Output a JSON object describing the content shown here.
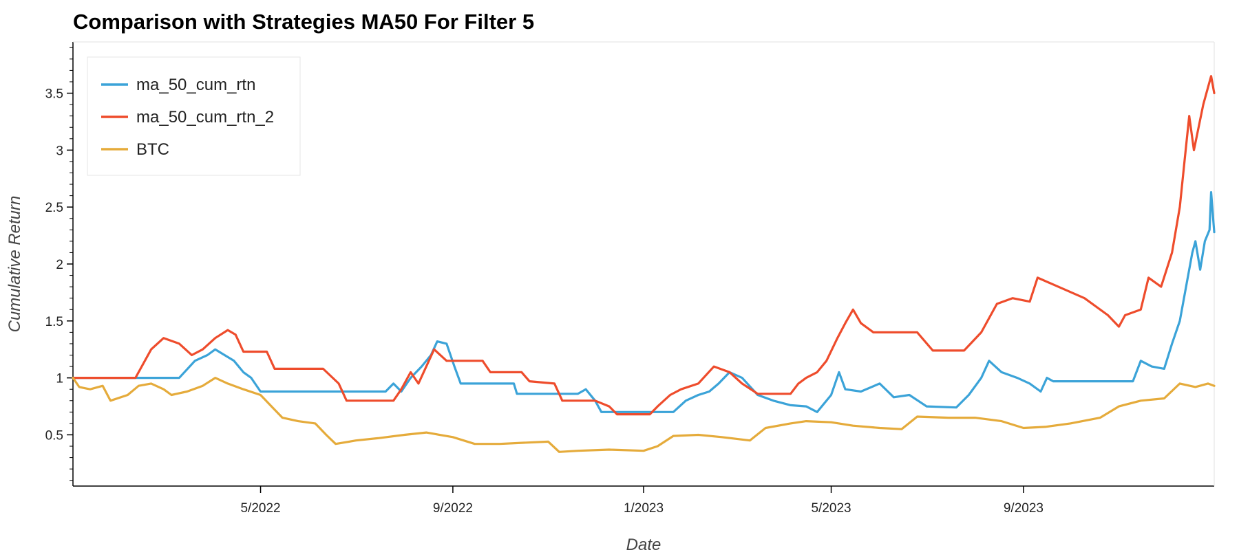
{
  "chart_data": {
    "type": "line",
    "title": "Comparison with Strategies MA50 For Filter 5",
    "xlabel": "Date",
    "ylabel": "Cumulative Return",
    "xlim": [
      "2022-01-01",
      "2024-01-01"
    ],
    "ylim": [
      0.05,
      3.95
    ],
    "x_ticks": [
      {
        "date": "2022-05-01",
        "label": "5/2022"
      },
      {
        "date": "2022-09-01",
        "label": "9/2022"
      },
      {
        "date": "2023-01-01",
        "label": "1/2023"
      },
      {
        "date": "2023-05-01",
        "label": "5/2023"
      },
      {
        "date": "2023-09-01",
        "label": "9/2023"
      }
    ],
    "y_ticks": [
      {
        "value": 0.5,
        "label": "0.5"
      },
      {
        "value": 1,
        "label": "1"
      },
      {
        "value": 1.5,
        "label": "1.5"
      },
      {
        "value": 2,
        "label": "2"
      },
      {
        "value": 2.5,
        "label": "2.5"
      },
      {
        "value": 3,
        "label": "3"
      },
      {
        "value": 3.5,
        "label": "3.5"
      }
    ],
    "grid": false,
    "legend_position": "top-left",
    "series": [
      {
        "name": "ma_50_cum_rtn",
        "color": "#3ba3d8",
        "points": [
          [
            "2022-01-01",
            1.0
          ],
          [
            "2022-02-10",
            1.0
          ],
          [
            "2022-03-10",
            1.0
          ],
          [
            "2022-03-20",
            1.15
          ],
          [
            "2022-03-28",
            1.2
          ],
          [
            "2022-04-02",
            1.25
          ],
          [
            "2022-04-08",
            1.2
          ],
          [
            "2022-04-14",
            1.15
          ],
          [
            "2022-04-20",
            1.05
          ],
          [
            "2022-04-25",
            1.0
          ],
          [
            "2022-05-01",
            0.88
          ],
          [
            "2022-07-01",
            0.88
          ],
          [
            "2022-07-20",
            0.88
          ],
          [
            "2022-07-25",
            0.95
          ],
          [
            "2022-07-30",
            0.88
          ],
          [
            "2022-08-05",
            1.0
          ],
          [
            "2022-08-12",
            1.1
          ],
          [
            "2022-08-18",
            1.2
          ],
          [
            "2022-08-22",
            1.32
          ],
          [
            "2022-08-28",
            1.3
          ],
          [
            "2022-09-02",
            1.1
          ],
          [
            "2022-09-06",
            0.95
          ],
          [
            "2022-10-10",
            0.95
          ],
          [
            "2022-10-12",
            0.86
          ],
          [
            "2022-11-20",
            0.86
          ],
          [
            "2022-11-25",
            0.9
          ],
          [
            "2022-12-01",
            0.8
          ],
          [
            "2022-12-05",
            0.7
          ],
          [
            "2023-01-20",
            0.7
          ],
          [
            "2023-01-28",
            0.8
          ],
          [
            "2023-02-05",
            0.85
          ],
          [
            "2023-02-12",
            0.88
          ],
          [
            "2023-02-18",
            0.95
          ],
          [
            "2023-02-25",
            1.05
          ],
          [
            "2023-03-05",
            1.0
          ],
          [
            "2023-03-15",
            0.85
          ],
          [
            "2023-03-25",
            0.8
          ],
          [
            "2023-04-05",
            0.76
          ],
          [
            "2023-04-15",
            0.75
          ],
          [
            "2023-04-22",
            0.7
          ],
          [
            "2023-05-01",
            0.85
          ],
          [
            "2023-05-06",
            1.05
          ],
          [
            "2023-05-10",
            0.9
          ],
          [
            "2023-05-20",
            0.88
          ],
          [
            "2023-06-01",
            0.95
          ],
          [
            "2023-06-10",
            0.83
          ],
          [
            "2023-06-20",
            0.85
          ],
          [
            "2023-07-01",
            0.75
          ],
          [
            "2023-07-20",
            0.74
          ],
          [
            "2023-07-28",
            0.85
          ],
          [
            "2023-08-05",
            1.0
          ],
          [
            "2023-08-10",
            1.15
          ],
          [
            "2023-08-18",
            1.05
          ],
          [
            "2023-08-28",
            1.0
          ],
          [
            "2023-09-05",
            0.95
          ],
          [
            "2023-09-12",
            0.88
          ],
          [
            "2023-09-16",
            1.0
          ],
          [
            "2023-09-20",
            0.97
          ],
          [
            "2023-11-10",
            0.97
          ],
          [
            "2023-11-15",
            1.15
          ],
          [
            "2023-11-22",
            1.1
          ],
          [
            "2023-11-30",
            1.08
          ],
          [
            "2023-12-05",
            1.3
          ],
          [
            "2023-12-10",
            1.5
          ],
          [
            "2023-12-14",
            1.8
          ],
          [
            "2023-12-18",
            2.1
          ],
          [
            "2023-12-20",
            2.2
          ],
          [
            "2023-12-23",
            1.95
          ],
          [
            "2023-12-26",
            2.2
          ],
          [
            "2023-12-29",
            2.3
          ],
          [
            "2023-12-30",
            2.63
          ],
          [
            "2024-01-01",
            2.28
          ]
        ]
      },
      {
        "name": "ma_50_cum_rtn_2",
        "color": "#ee4c2c",
        "points": [
          [
            "2022-01-01",
            1.0
          ],
          [
            "2022-02-10",
            1.0
          ],
          [
            "2022-02-20",
            1.25
          ],
          [
            "2022-02-28",
            1.35
          ],
          [
            "2022-03-10",
            1.3
          ],
          [
            "2022-03-18",
            1.2
          ],
          [
            "2022-03-25",
            1.25
          ],
          [
            "2022-04-02",
            1.35
          ],
          [
            "2022-04-10",
            1.42
          ],
          [
            "2022-04-15",
            1.38
          ],
          [
            "2022-04-20",
            1.23
          ],
          [
            "2022-05-05",
            1.23
          ],
          [
            "2022-05-10",
            1.08
          ],
          [
            "2022-06-10",
            1.08
          ],
          [
            "2022-06-20",
            0.95
          ],
          [
            "2022-06-25",
            0.8
          ],
          [
            "2022-07-25",
            0.8
          ],
          [
            "2022-07-30",
            0.9
          ],
          [
            "2022-08-05",
            1.05
          ],
          [
            "2022-08-10",
            0.95
          ],
          [
            "2022-08-15",
            1.1
          ],
          [
            "2022-08-20",
            1.25
          ],
          [
            "2022-08-28",
            1.15
          ],
          [
            "2022-09-20",
            1.15
          ],
          [
            "2022-09-25",
            1.05
          ],
          [
            "2022-10-15",
            1.05
          ],
          [
            "2022-10-20",
            0.97
          ],
          [
            "2022-11-05",
            0.95
          ],
          [
            "2022-11-10",
            0.8
          ],
          [
            "2022-12-01",
            0.8
          ],
          [
            "2022-12-10",
            0.75
          ],
          [
            "2022-12-15",
            0.68
          ],
          [
            "2023-01-05",
            0.68
          ],
          [
            "2023-01-10",
            0.75
          ],
          [
            "2023-01-18",
            0.85
          ],
          [
            "2023-01-25",
            0.9
          ],
          [
            "2023-02-05",
            0.95
          ],
          [
            "2023-02-15",
            1.1
          ],
          [
            "2023-02-25",
            1.05
          ],
          [
            "2023-03-05",
            0.95
          ],
          [
            "2023-03-15",
            0.86
          ],
          [
            "2023-04-05",
            0.86
          ],
          [
            "2023-04-10",
            0.95
          ],
          [
            "2023-04-15",
            1.0
          ],
          [
            "2023-04-22",
            1.05
          ],
          [
            "2023-04-28",
            1.15
          ],
          [
            "2023-05-05",
            1.35
          ],
          [
            "2023-05-10",
            1.48
          ],
          [
            "2023-05-15",
            1.6
          ],
          [
            "2023-05-20",
            1.48
          ],
          [
            "2023-05-28",
            1.4
          ],
          [
            "2023-06-25",
            1.4
          ],
          [
            "2023-07-05",
            1.24
          ],
          [
            "2023-07-25",
            1.24
          ],
          [
            "2023-08-05",
            1.4
          ],
          [
            "2023-08-15",
            1.65
          ],
          [
            "2023-08-25",
            1.7
          ],
          [
            "2023-09-05",
            1.67
          ],
          [
            "2023-09-10",
            1.88
          ],
          [
            "2023-09-20",
            1.82
          ],
          [
            "2023-10-10",
            1.7
          ],
          [
            "2023-10-25",
            1.55
          ],
          [
            "2023-11-01",
            1.45
          ],
          [
            "2023-11-05",
            1.55
          ],
          [
            "2023-11-15",
            1.6
          ],
          [
            "2023-11-20",
            1.88
          ],
          [
            "2023-11-28",
            1.8
          ],
          [
            "2023-12-05",
            2.1
          ],
          [
            "2023-12-10",
            2.5
          ],
          [
            "2023-12-13",
            2.9
          ],
          [
            "2023-12-16",
            3.3
          ],
          [
            "2023-12-19",
            3.0
          ],
          [
            "2023-12-22",
            3.2
          ],
          [
            "2023-12-25",
            3.4
          ],
          [
            "2023-12-28",
            3.55
          ],
          [
            "2023-12-30",
            3.65
          ],
          [
            "2024-01-01",
            3.5
          ]
        ]
      },
      {
        "name": "BTC",
        "color": "#e5ab3b",
        "points": [
          [
            "2022-01-01",
            1.0
          ],
          [
            "2022-01-05",
            0.92
          ],
          [
            "2022-01-12",
            0.9
          ],
          [
            "2022-01-20",
            0.93
          ],
          [
            "2022-01-25",
            0.8
          ],
          [
            "2022-02-05",
            0.85
          ],
          [
            "2022-02-12",
            0.93
          ],
          [
            "2022-02-20",
            0.95
          ],
          [
            "2022-02-28",
            0.9
          ],
          [
            "2022-03-05",
            0.85
          ],
          [
            "2022-03-15",
            0.88
          ],
          [
            "2022-03-25",
            0.93
          ],
          [
            "2022-04-02",
            1.0
          ],
          [
            "2022-04-10",
            0.95
          ],
          [
            "2022-04-20",
            0.9
          ],
          [
            "2022-05-01",
            0.85
          ],
          [
            "2022-05-08",
            0.75
          ],
          [
            "2022-05-15",
            0.65
          ],
          [
            "2022-05-25",
            0.62
          ],
          [
            "2022-06-05",
            0.6
          ],
          [
            "2022-06-12",
            0.5
          ],
          [
            "2022-06-18",
            0.42
          ],
          [
            "2022-07-01",
            0.45
          ],
          [
            "2022-07-15",
            0.47
          ],
          [
            "2022-08-01",
            0.5
          ],
          [
            "2022-08-15",
            0.52
          ],
          [
            "2022-09-01",
            0.48
          ],
          [
            "2022-09-15",
            0.42
          ],
          [
            "2022-10-01",
            0.42
          ],
          [
            "2022-10-15",
            0.43
          ],
          [
            "2022-11-01",
            0.44
          ],
          [
            "2022-11-08",
            0.35
          ],
          [
            "2022-11-20",
            0.36
          ],
          [
            "2022-12-10",
            0.37
          ],
          [
            "2023-01-01",
            0.36
          ],
          [
            "2023-01-10",
            0.4
          ],
          [
            "2023-01-20",
            0.49
          ],
          [
            "2023-02-05",
            0.5
          ],
          [
            "2023-02-20",
            0.48
          ],
          [
            "2023-03-10",
            0.45
          ],
          [
            "2023-03-20",
            0.56
          ],
          [
            "2023-04-05",
            0.6
          ],
          [
            "2023-04-15",
            0.62
          ],
          [
            "2023-05-01",
            0.61
          ],
          [
            "2023-05-15",
            0.58
          ],
          [
            "2023-06-01",
            0.56
          ],
          [
            "2023-06-15",
            0.55
          ],
          [
            "2023-06-25",
            0.66
          ],
          [
            "2023-07-15",
            0.65
          ],
          [
            "2023-08-01",
            0.65
          ],
          [
            "2023-08-18",
            0.62
          ],
          [
            "2023-09-01",
            0.56
          ],
          [
            "2023-09-15",
            0.57
          ],
          [
            "2023-10-01",
            0.6
          ],
          [
            "2023-10-20",
            0.65
          ],
          [
            "2023-11-01",
            0.75
          ],
          [
            "2023-11-15",
            0.8
          ],
          [
            "2023-11-30",
            0.82
          ],
          [
            "2023-12-10",
            0.95
          ],
          [
            "2023-12-20",
            0.92
          ],
          [
            "2023-12-28",
            0.95
          ],
          [
            "2024-01-01",
            0.93
          ]
        ]
      }
    ]
  }
}
